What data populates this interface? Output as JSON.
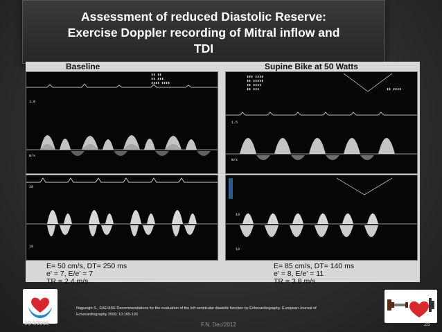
{
  "title": {
    "line1": "Assessment of reduced Diastolic Reserve:",
    "line2": "Exercise Doppler recording of Mitral inflow and",
    "line3": "TDI"
  },
  "figure": {
    "left_heading": "Baseline",
    "right_heading": "Supine Bike at 50 Watts",
    "left_measurements": {
      "line1": "E= 50 cm/s, DT= 250 ms",
      "line2": "e' = 7, E/e' = 7",
      "line3": "TR = 2.4 m/s"
    },
    "right_measurements": {
      "line1": "E= 85 cm/s, DT= 140 ms",
      "line2": "e' = 8, E/e' = 11",
      "line3": "TR = 3.8 m/s"
    }
  },
  "citation": {
    "line1": "Nagueigh S., EAE/ASE Recommendations for the evaluation of the left ventricular diastolic function by Echocardiography. European Journal of",
    "line2": "Echocardiography 2009; 10:165-193"
  },
  "footer": {
    "date": "10/4/2016",
    "author": "F.N. Dec/2012",
    "page": "25"
  },
  "colors": {
    "title_bg": "#2c2c2c",
    "figure_bg": "#d8d8d8",
    "heart_red": "#d7282f",
    "hands_blue": "#2b86c5"
  }
}
